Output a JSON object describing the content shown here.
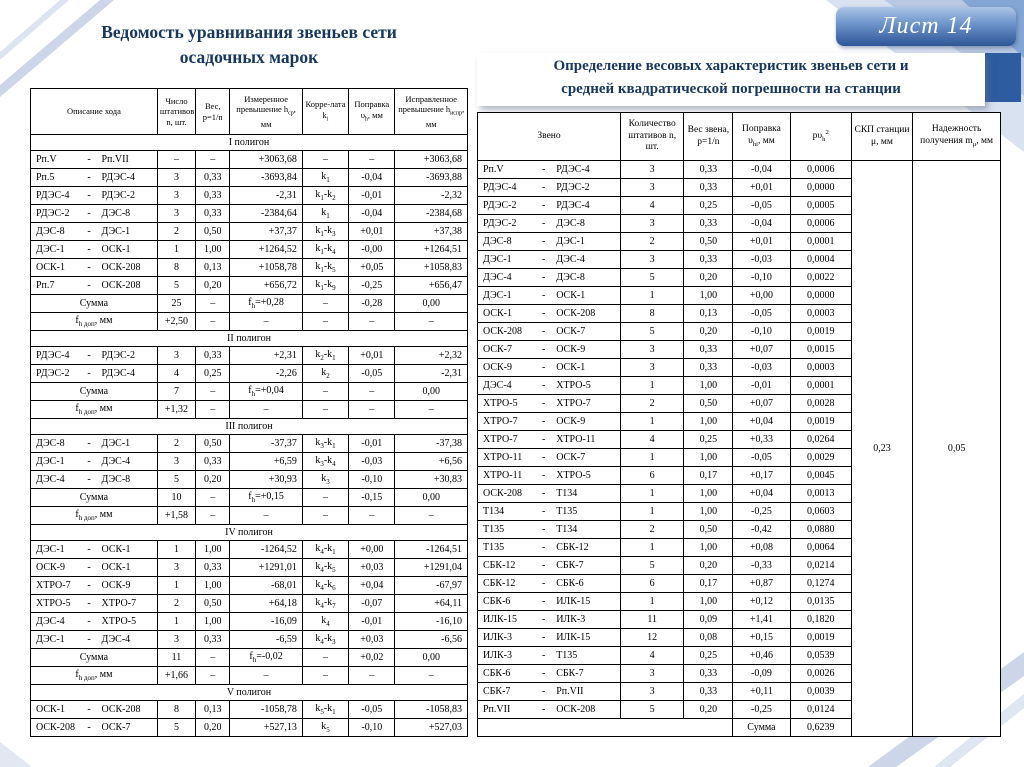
{
  "sheet_badge": "Лист 14",
  "left_table": {
    "title": [
      "Ведомость уравнивания звеньев сети",
      "осадочных марок"
    ],
    "headers": [
      "Описание хода",
      "Число штативов n, шт.",
      "Вес, p=1/n",
      "Измеренное превышение h<sub>ср</sub>, мм",
      "Корре-лата k<sub>i</sub>",
      "Поправка υ<sub>h</sub>, мм",
      "Исправленное превышение h<sub>испр</sub>, мм"
    ],
    "sections": [
      {
        "name": "I полигон",
        "rows": [
          [
            "Рп.V",
            "Рп.VII",
            "–",
            "–",
            "+3063,68",
            "–",
            "–",
            "+3063,68"
          ],
          [
            "Рп.5",
            "РДЭС-4",
            "3",
            "0,33",
            "-3693,84",
            "k<sub>1</sub>",
            "-0,04",
            "-3693,88"
          ],
          [
            "РДЭС-4",
            "РДЭС-2",
            "3",
            "0,33",
            "-2,31",
            "k<sub>1</sub>-k<sub>2</sub>",
            "-0,01",
            "-2,32"
          ],
          [
            "РДЭС-2",
            "ДЭС-8",
            "3",
            "0,33",
            "-2384,64",
            "k<sub>1</sub>",
            "-0,04",
            "-2384,68"
          ],
          [
            "ДЭС-8",
            "ДЭС-1",
            "2",
            "0,50",
            "+37,37",
            "k<sub>1</sub>-k<sub>3</sub>",
            "+0,01",
            "+37,38"
          ],
          [
            "ДЭС-1",
            "ОСК-1",
            "1",
            "1,00",
            "+1264,52",
            "k<sub>1</sub>-k<sub>4</sub>",
            "-0,00",
            "+1264,51"
          ],
          [
            "ОСК-1",
            "ОСК-208",
            "8",
            "0,13",
            "+1058,78",
            "k<sub>1</sub>-k<sub>5</sub>",
            "+0,05",
            "+1058,83"
          ],
          [
            "Рп.7",
            "ОСК-208",
            "5",
            "0,20",
            "+656,72",
            "k<sub>1</sub>-k<sub>9</sub>",
            "-0,25",
            "+656,47"
          ]
        ],
        "sum": [
          "Сумма",
          "25",
          "–",
          "f<sub>h</sub>=+0,28",
          "–",
          "-0,28",
          "0,00"
        ],
        "fdop": [
          "f<sub>h доп</sub>, мм",
          "+2,50",
          "–",
          "–",
          "–",
          "–",
          "–"
        ]
      },
      {
        "name": "II полигон",
        "rows": [
          [
            "РДЭС-4",
            "РДЭС-2",
            "3",
            "0,33",
            "+2,31",
            "k<sub>2</sub>-k<sub>1</sub>",
            "+0,01",
            "+2,32"
          ],
          [
            "РДЭС-2",
            "РДЭС-4",
            "4",
            "0,25",
            "-2,26",
            "k<sub>2</sub>",
            "-0,05",
            "-2,31"
          ]
        ],
        "sum": [
          "Сумма",
          "7",
          "–",
          "f<sub>h</sub>=+0,04",
          "–",
          "–",
          "0,00"
        ],
        "fdop": [
          "f<sub>h доп</sub>, мм",
          "+1,32",
          "–",
          "–",
          "–",
          "–",
          "–"
        ]
      },
      {
        "name": "III полигон",
        "rows": [
          [
            "ДЭС-8",
            "ДЭС-1",
            "2",
            "0,50",
            "-37,37",
            "k<sub>3</sub>-k<sub>1</sub>",
            "-0,01",
            "-37,38"
          ],
          [
            "ДЭС-1",
            "ДЭС-4",
            "3",
            "0,33",
            "+6,59",
            "k<sub>3</sub>-k<sub>4</sub>",
            "-0,03",
            "+6,56"
          ],
          [
            "ДЭС-4",
            "ДЭС-8",
            "5",
            "0,20",
            "+30,93",
            "k<sub>3</sub>",
            "-0,10",
            "+30,83"
          ]
        ],
        "sum": [
          "Сумма",
          "10",
          "–",
          "f<sub>h</sub>=+0,15",
          "–",
          "-0,15",
          "0,00"
        ],
        "fdop": [
          "f<sub>h доп</sub>, мм",
          "+1,58",
          "–",
          "–",
          "–",
          "–",
          "–"
        ]
      },
      {
        "name": "IV полигон",
        "rows": [
          [
            "ДЭС-1",
            "ОСК-1",
            "1",
            "1,00",
            "-1264,52",
            "k<sub>4</sub>-k<sub>1</sub>",
            "+0,00",
            "-1264,51"
          ],
          [
            "ОСК-9",
            "ОСК-1",
            "3",
            "0,33",
            "+1291,01",
            "k<sub>4</sub>-k<sub>5</sub>",
            "+0,03",
            "+1291,04"
          ],
          [
            "ХТРО-7",
            "ОСК-9",
            "1",
            "1,00",
            "-68,01",
            "k<sub>4</sub>-k<sub>6</sub>",
            "+0,04",
            "-67,97"
          ],
          [
            "ХТРО-5",
            "ХТРО-7",
            "2",
            "0,50",
            "+64,18",
            "k<sub>4</sub>-k<sub>7</sub>",
            "-0,07",
            "+64,11"
          ],
          [
            "ДЭС-4",
            "ХТРО-5",
            "1",
            "1,00",
            "-16,09",
            "k<sub>4</sub>",
            "-0,01",
            "-16,10"
          ],
          [
            "ДЭС-1",
            "ДЭС-4",
            "3",
            "0,33",
            "-6,59",
            "k<sub>4</sub>-k<sub>3</sub>",
            "+0,03",
            "-6,56"
          ]
        ],
        "sum": [
          "Сумма",
          "11",
          "–",
          "f<sub>h</sub>=-0,02",
          "–",
          "+0,02",
          "0,00"
        ],
        "fdop": [
          "f<sub>h доп</sub>, мм",
          "+1,66",
          "–",
          "–",
          "–",
          "–",
          "–"
        ]
      },
      {
        "name": "V полигон",
        "rows": [
          [
            "ОСК-1",
            "ОСК-208",
            "8",
            "0,13",
            "-1058,78",
            "k<sub>5</sub>-k<sub>1</sub>",
            "-0,05",
            "-1058,83"
          ],
          [
            "ОСК-208",
            "ОСК-7",
            "5",
            "0,20",
            "+527,13",
            "k<sub>5</sub>",
            "-0,10",
            "+527,03"
          ]
        ],
        "sum": null,
        "fdop": null
      }
    ]
  },
  "right_table": {
    "title": [
      "Определение весовых характеристик звеньев сети и",
      "средней квадратической погрешности на станции"
    ],
    "headers": [
      "Звено",
      "Количество штативов n, шт.",
      "Вес звена, p=1/n",
      "Поправка υ<sub>hi</sub>, мм",
      "pυ<sub>h</sub><sup>2</sup>",
      "СКП станции μ, мм",
      "Надежность получения m<sub>μ</sub>, мм"
    ],
    "rows": [
      [
        "Рп.V",
        "РДЭС-4",
        "3",
        "0,33",
        "-0,04",
        "0,0006"
      ],
      [
        "РДЭС-4",
        "РДЭС-2",
        "3",
        "0,33",
        "+0,01",
        "0,0000"
      ],
      [
        "РДЭС-2",
        "РДЭС-4",
        "4",
        "0,25",
        "-0,05",
        "0,0005"
      ],
      [
        "РДЭС-2",
        "ДЭС-8",
        "3",
        "0,33",
        "-0,04",
        "0,0006"
      ],
      [
        "ДЭС-8",
        "ДЭС-1",
        "2",
        "0,50",
        "+0,01",
        "0,0001"
      ],
      [
        "ДЭС-1",
        "ДЭС-4",
        "3",
        "0,33",
        "-0,03",
        "0,0004"
      ],
      [
        "ДЭС-4",
        "ДЭС-8",
        "5",
        "0,20",
        "-0,10",
        "0,0022"
      ],
      [
        "ДЭС-1",
        "ОСК-1",
        "1",
        "1,00",
        "+0,00",
        "0,0000"
      ],
      [
        "ОСК-1",
        "ОСК-208",
        "8",
        "0,13",
        "-0,05",
        "0,0003"
      ],
      [
        "ОСК-208",
        "ОСК-7",
        "5",
        "0,20",
        "-0,10",
        "0,0019"
      ],
      [
        "ОСК-7",
        "ОСК-9",
        "3",
        "0,33",
        "+0,07",
        "0,0015"
      ],
      [
        "ОСК-9",
        "ОСК-1",
        "3",
        "0,33",
        "-0,03",
        "0,0003"
      ],
      [
        "ДЭС-4",
        "ХТРО-5",
        "1",
        "1,00",
        "-0,01",
        "0,0001"
      ],
      [
        "ХТРО-5",
        "ХТРО-7",
        "2",
        "0,50",
        "+0,07",
        "0,0028"
      ],
      [
        "ХТРО-7",
        "ОСК-9",
        "1",
        "1,00",
        "+0,04",
        "0,0019"
      ],
      [
        "ХТРО-7",
        "ХТРО-11",
        "4",
        "0,25",
        "+0,33",
        "0,0264"
      ],
      [
        "ХТРО-11",
        "ОСК-7",
        "1",
        "1,00",
        "-0,05",
        "0,0029"
      ],
      [
        "ХТРО-11",
        "ХТРО-5",
        "6",
        "0,17",
        "+0,17",
        "0,0045"
      ],
      [
        "ОСК-208",
        "Т134",
        "1",
        "1,00",
        "+0,04",
        "0,0013"
      ],
      [
        "Т134",
        "Т135",
        "1",
        "1,00",
        "-0,25",
        "0,0603"
      ],
      [
        "Т135",
        "Т134",
        "2",
        "0,50",
        "-0,42",
        "0,0880"
      ],
      [
        "Т135",
        "СБК-12",
        "1",
        "1,00",
        "+0,08",
        "0,0064"
      ],
      [
        "СБК-12",
        "СБК-7",
        "5",
        "0,20",
        "-0,33",
        "0,0214"
      ],
      [
        "СБК-12",
        "СБК-6",
        "6",
        "0,17",
        "+0,87",
        "0,1274"
      ],
      [
        "СБК-6",
        "ИЛК-15",
        "1",
        "1,00",
        "+0,12",
        "0,0135"
      ],
      [
        "ИЛК-15",
        "ИЛК-3",
        "11",
        "0,09",
        "+1,41",
        "0,1820"
      ],
      [
        "ИЛК-3",
        "ИЛК-15",
        "12",
        "0,08",
        "+0,15",
        "0,0019"
      ],
      [
        "ИЛК-3",
        "Т135",
        "4",
        "0,25",
        "+0,46",
        "0,0539"
      ],
      [
        "СБК-6",
        "СБК-7",
        "3",
        "0,33",
        "-0,09",
        "0,0026"
      ],
      [
        "СБК-7",
        "Рп.VII",
        "3",
        "0,33",
        "+0,11",
        "0,0039"
      ],
      [
        "Рп.VII",
        "ОСК-208",
        "5",
        "0,20",
        "-0,25",
        "0,0124"
      ]
    ],
    "sum_row": {
      "label": "Сумма",
      "value": "0,6239"
    },
    "mu": "0,23",
    "m_mu": "0,05"
  },
  "colors": {
    "title_navy": "#17375e",
    "banner_blue": "#2e5596",
    "band_blue": "#2e5ca0",
    "deco_light": "#ccd6e8"
  }
}
